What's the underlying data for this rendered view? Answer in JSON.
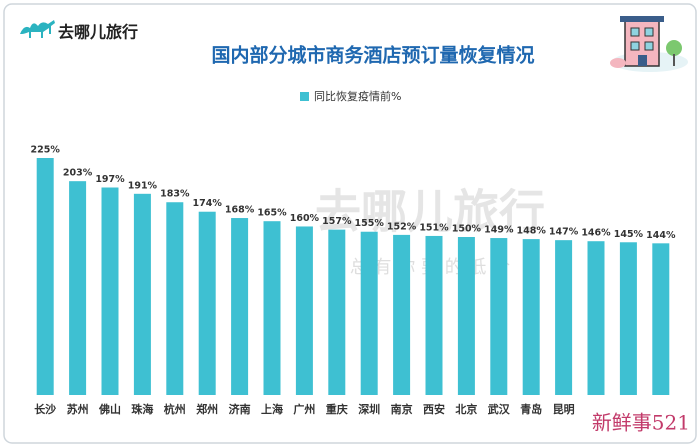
{
  "logo": "去哪儿旅行",
  "watermark": "去哪儿旅行",
  "watermark_sub": "总 有 你 要 的 低 价",
  "corner_mark": "新鲜事521",
  "chart_data": {
    "type": "bar",
    "title": "国内部分城市商务酒店预订量恢复情况",
    "categories": [
      "长沙",
      "苏州",
      "佛山",
      "珠海",
      "杭州",
      "郑州",
      "济南",
      "上海",
      "广州",
      "重庆",
      "深圳",
      "南京",
      "西安",
      "北京",
      "武汉",
      "青岛",
      "昆明",
      null,
      null,
      null
    ],
    "series": [
      {
        "name": "同比恢复疫情前%",
        "color": "#3ec0d2",
        "values": [
          225,
          203,
          197,
          191,
          183,
          174,
          168,
          165,
          160,
          157,
          155,
          152,
          151,
          150,
          149,
          148,
          147,
          146,
          145,
          144
        ],
        "value_labels": [
          "225%",
          "203%",
          "197%",
          "191%",
          "183%",
          "174%",
          "168%",
          "165%",
          "160%",
          "157%",
          "155%",
          "152%",
          "151%",
          "150%",
          "149%",
          "148%",
          "147%",
          "146%",
          "145%",
          "144%"
        ]
      }
    ],
    "legend": "top"
  }
}
